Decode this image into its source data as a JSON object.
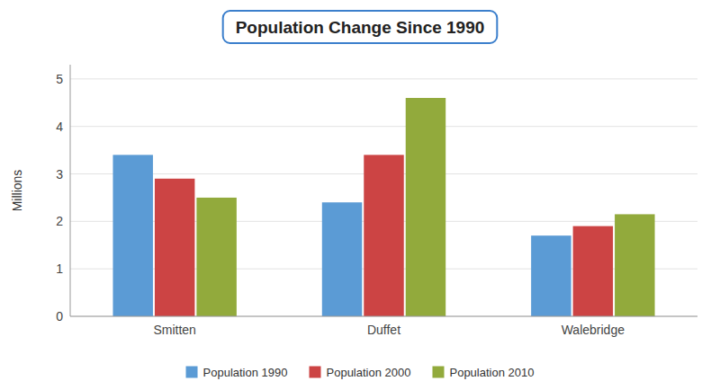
{
  "chart_data": {
    "type": "bar",
    "title": "Population Change Since 1990",
    "categories": [
      "Smitten",
      "Duffet",
      "Walebridge"
    ],
    "series": [
      {
        "name": "Population 1990",
        "color": "#5B9BD5",
        "values": [
          3.4,
          2.4,
          1.7
        ]
      },
      {
        "name": "Population 2000",
        "color": "#CC4444",
        "values": [
          2.9,
          3.4,
          1.9
        ]
      },
      {
        "name": "Population 2010",
        "color": "#92AA3C",
        "values": [
          2.5,
          4.6,
          2.15
        ]
      }
    ],
    "ylabel": "Millions",
    "ylim": [
      0,
      5.3
    ],
    "yticks": [
      0,
      1,
      2,
      3,
      4,
      5
    ],
    "grid": true,
    "legend": "bottom"
  }
}
